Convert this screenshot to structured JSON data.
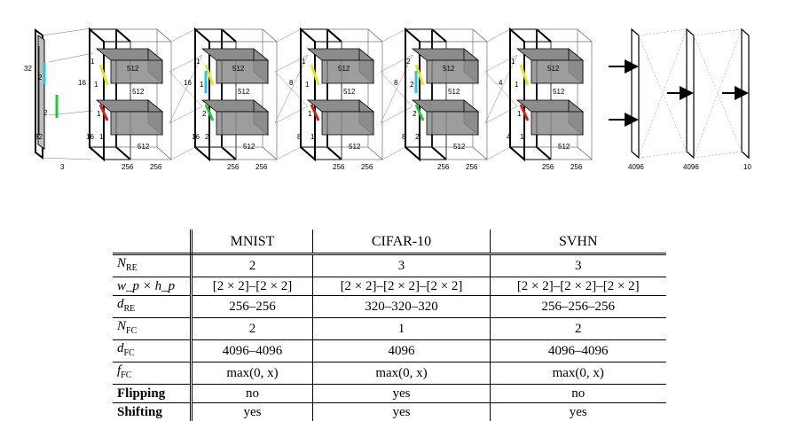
{
  "figure": {
    "input": {
      "height": "32",
      "width": "32",
      "channels": "3",
      "patch_top": "2",
      "patch_bottom": "2"
    },
    "blocks": [
      {
        "top_in": "16",
        "bot_in": "16",
        "kernel": "1",
        "depth": "512",
        "w1": "256",
        "w2": "256"
      },
      {
        "top_in": "16",
        "bot_in": "16",
        "kernel_top": "1",
        "kernel_bot": "2",
        "depth": "512",
        "w1": "256",
        "w2": "256"
      },
      {
        "top_in": "8",
        "bot_in": "8",
        "kernel": "1",
        "depth": "512",
        "w1": "256",
        "w2": "256"
      },
      {
        "top_in": "8",
        "bot_in": "8",
        "kernel_top": "2",
        "kernel_bot": "2",
        "depth": "512",
        "w1": "256",
        "w2": "256"
      },
      {
        "top_in": "4",
        "bot_in": "4",
        "kernel": "1",
        "depth": "512",
        "w1": "256",
        "w2": "256"
      }
    ],
    "fc": [
      "4096",
      "4096",
      "10"
    ],
    "colors": {
      "cyan": "#29c4e6",
      "yellow": "#e6e61a",
      "green": "#22c832",
      "red": "#d41e1e",
      "gray": "#8c8c8c"
    }
  },
  "table": {
    "columns": [
      "MNIST",
      "CIFAR-10",
      "SVHN"
    ],
    "rows": [
      {
        "label": "N_RE",
        "label_main": "N",
        "label_sub": "RE",
        "values": [
          "2",
          "3",
          "3"
        ]
      },
      {
        "label": "w_p × h_p",
        "values": [
          "[2 × 2]–[2 × 2]",
          "[2 × 2]–[2 × 2]–[2 × 2]",
          "[2 × 2]–[2 × 2]–[2 × 2]"
        ]
      },
      {
        "label": "d_RE",
        "label_main": "d",
        "label_sub": "RE",
        "values": [
          "256–256",
          "320–320–320",
          "256–256–256"
        ]
      },
      {
        "label": "N_FC",
        "label_main": "N",
        "label_sub": "FC",
        "values": [
          "2",
          "1",
          "2"
        ]
      },
      {
        "label": "d_FC",
        "label_main": "d",
        "label_sub": "FC",
        "values": [
          "4096–4096",
          "4096",
          "4096–4096"
        ]
      },
      {
        "label": "f_FC",
        "label_main": "f",
        "label_sub": "FC",
        "values": [
          "max(0, x)",
          "max(0, x)",
          "max(0, x)"
        ]
      },
      {
        "label": "Flipping",
        "values": [
          "no",
          "yes",
          "no"
        ]
      },
      {
        "label": "Shifting",
        "values": [
          "yes",
          "yes",
          "yes"
        ]
      }
    ]
  }
}
